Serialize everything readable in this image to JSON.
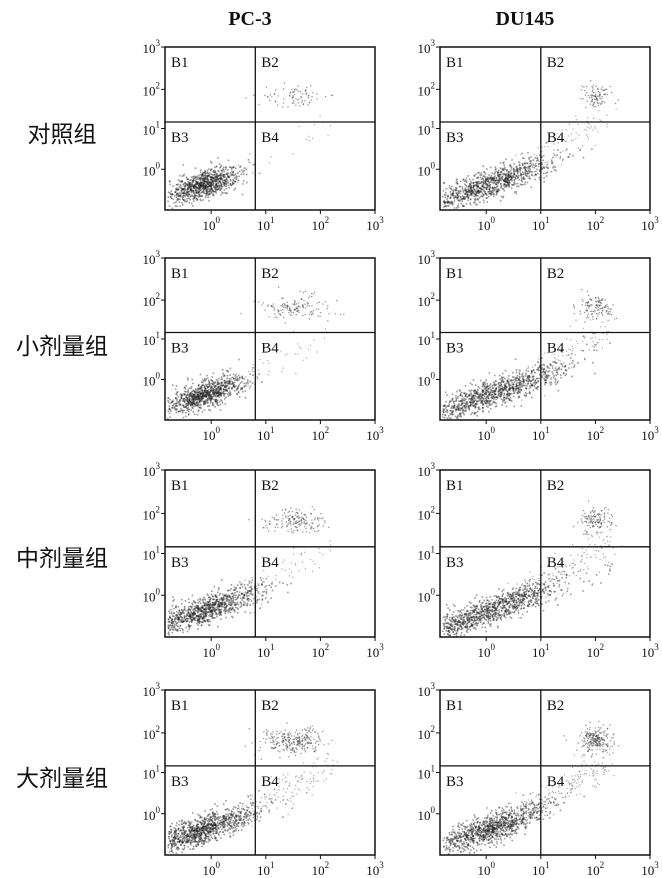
{
  "columns": [
    "PC-3",
    "DU145"
  ],
  "rows": [
    "对照组",
    "小剂量组",
    "中剂量组",
    "大剂量组"
  ],
  "quadrants": [
    "B1",
    "B2",
    "B3",
    "B4"
  ],
  "axis_ticks": [
    {
      "base": "10",
      "exponent": "0"
    },
    {
      "base": "10",
      "exponent": "1"
    },
    {
      "base": "10",
      "exponent": "2"
    },
    {
      "base": "10",
      "exponent": "3"
    }
  ]
}
